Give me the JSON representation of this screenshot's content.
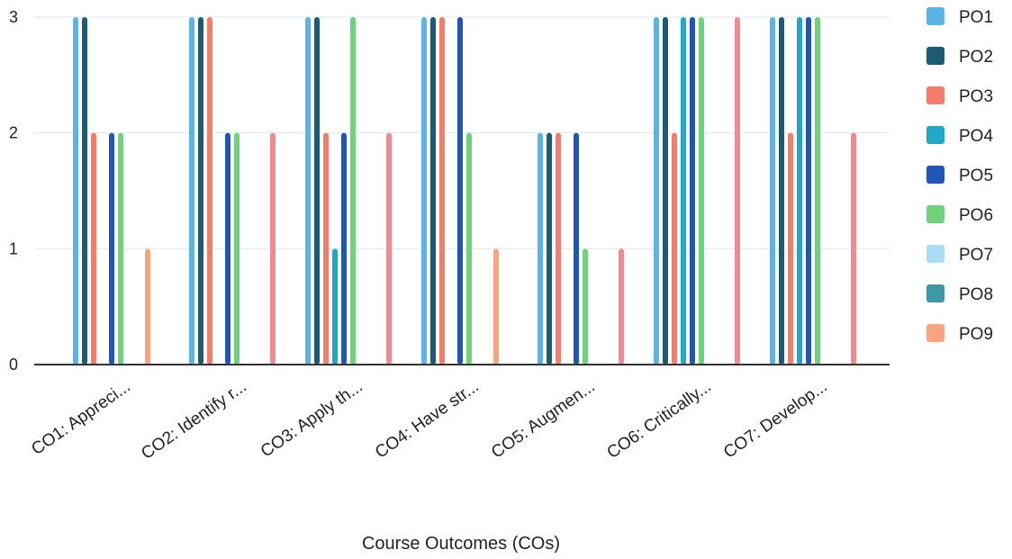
{
  "chart_data": {
    "type": "bar",
    "title": "",
    "xlabel": "Course Outcomes (COs)",
    "ylabel": "",
    "ylim": [
      0,
      3
    ],
    "yticks": [
      0,
      1,
      2,
      3
    ],
    "grid": true,
    "legend_position": "right",
    "categories": [
      "CO1: Appreci...",
      "CO2: Identify r...",
      "CO3: Apply th...",
      "CO4: Have str...",
      "CO5: Augmen...",
      "CO6: Critically...",
      "CO7: Develop..."
    ],
    "series": [
      {
        "name": "PO1",
        "color": "#5ab4e5",
        "values": [
          3,
          3,
          3,
          3,
          2,
          3,
          3
        ]
      },
      {
        "name": "PO2",
        "color": "#1c5b73",
        "values": [
          3,
          3,
          3,
          3,
          2,
          3,
          3
        ]
      },
      {
        "name": "PO3",
        "color": "#f47c6a",
        "values": [
          2,
          3,
          2,
          3,
          2,
          2,
          2
        ]
      },
      {
        "name": "PO4",
        "color": "#21a8c4",
        "values": [
          0,
          0,
          1,
          0,
          0,
          3,
          3
        ]
      },
      {
        "name": "PO5",
        "color": "#2156b8",
        "values": [
          2,
          2,
          2,
          3,
          2,
          3,
          3
        ]
      },
      {
        "name": "PO6",
        "color": "#6fd37c",
        "values": [
          2,
          2,
          3,
          2,
          1,
          3,
          3
        ]
      },
      {
        "name": "PO7",
        "color": "#a9dcf5",
        "values": [
          0,
          0,
          0,
          0,
          0,
          0,
          0
        ]
      },
      {
        "name": "PO8",
        "color": "#3f98a8",
        "values": [
          0,
          0,
          0,
          0,
          0,
          0,
          0
        ]
      },
      {
        "name": "PO9",
        "color": "#f9a37f",
        "values": [
          1,
          0,
          0,
          1,
          0,
          0,
          0
        ]
      },
      {
        "name": "",
        "color": "#f28a8f",
        "values": [
          0,
          2,
          2,
          0,
          1,
          3,
          2
        ]
      }
    ]
  }
}
